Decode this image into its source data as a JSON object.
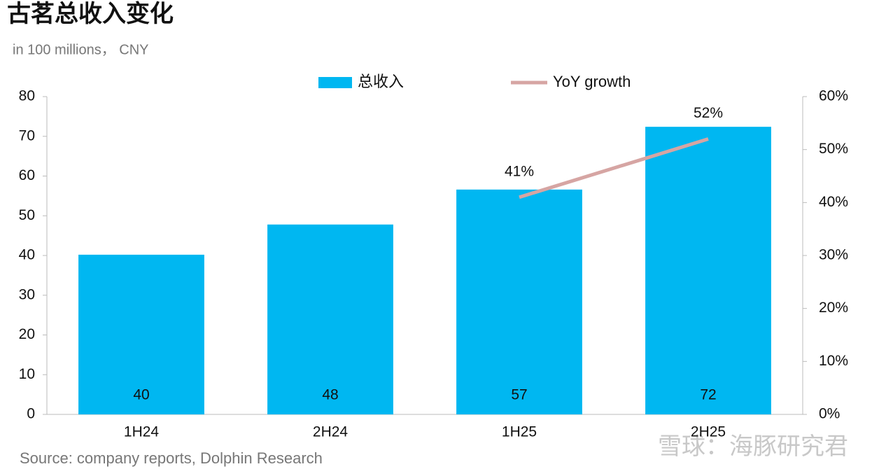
{
  "chart_data": {
    "type": "bar-line",
    "title": "古茗总收入变化",
    "subtitle": "in 100 millions， CNY",
    "source": "Source: company reports, Dolphin Research",
    "watermark": "雪球：海豚研究君",
    "categories": [
      "1H24",
      "2H24",
      "1H25",
      "2H25"
    ],
    "series": [
      {
        "name": "总收入",
        "type": "bar",
        "color": "#00b7f1",
        "values": [
          40.2,
          47.8,
          56.6,
          72.4
        ],
        "value_labels": [
          "40",
          "48",
          "57",
          "72"
        ]
      },
      {
        "name": "YoY growth",
        "type": "line",
        "axis": "y2",
        "color": "#d6a5a3",
        "values": [
          null,
          null,
          41,
          52
        ],
        "value_labels": [
          null,
          null,
          "41%",
          "52%"
        ]
      }
    ],
    "ylim": [
      0,
      80
    ],
    "yticks": [
      0,
      10,
      20,
      30,
      40,
      50,
      60,
      70,
      80
    ],
    "y2lim": [
      0,
      60
    ],
    "y2ticks": [
      {
        "value": 0,
        "label": "0%"
      },
      {
        "value": 10,
        "label": "10%"
      },
      {
        "value": 20,
        "label": "20%"
      },
      {
        "value": 30,
        "label": "30%"
      },
      {
        "value": 40,
        "label": "40%"
      },
      {
        "value": 50,
        "label": "50%"
      },
      {
        "value": 60,
        "label": "60%"
      }
    ],
    "legend": "top"
  }
}
